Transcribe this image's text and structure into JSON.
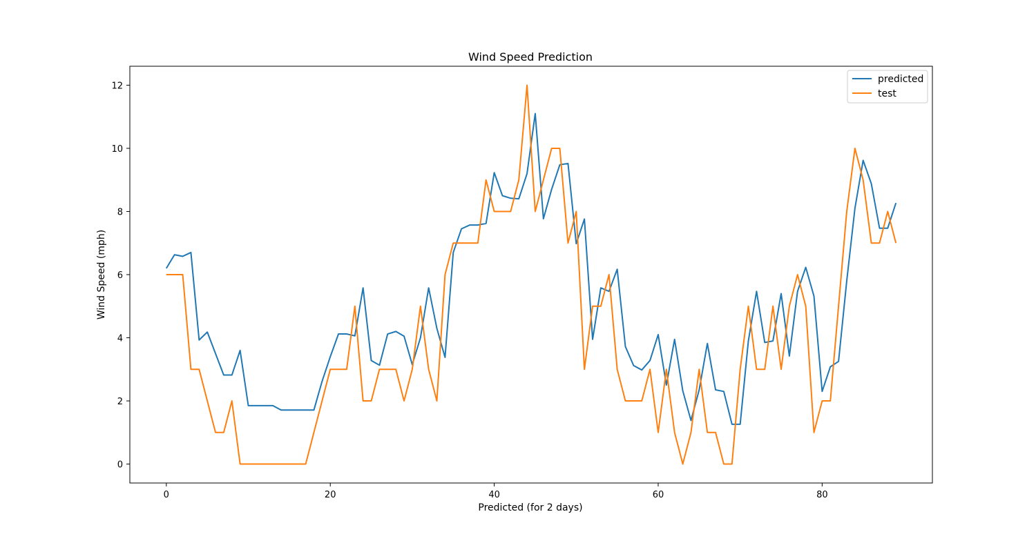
{
  "chart_data": {
    "type": "line",
    "title": "Wind Speed Prediction",
    "xlabel": "Predicted (for 2 days)",
    "ylabel": "Wind Speed (mph)",
    "xlim": [
      -4.45,
      93.45
    ],
    "ylim": [
      -0.6,
      12.6
    ],
    "xticks": [
      0,
      20,
      40,
      60,
      80
    ],
    "yticks": [
      0,
      2,
      4,
      6,
      8,
      10,
      12
    ],
    "grid": false,
    "legend_position": "top-right",
    "x": [
      0,
      1,
      2,
      3,
      4,
      5,
      6,
      7,
      8,
      9,
      10,
      11,
      12,
      13,
      14,
      15,
      16,
      17,
      18,
      19,
      20,
      21,
      22,
      23,
      24,
      25,
      26,
      27,
      28,
      29,
      30,
      31,
      32,
      33,
      34,
      35,
      36,
      37,
      38,
      39,
      40,
      41,
      42,
      43,
      44,
      45,
      46,
      47,
      48,
      49,
      50,
      51,
      52,
      53,
      54,
      55,
      56,
      57,
      58,
      59,
      60,
      61,
      62,
      63,
      64,
      65,
      66,
      67,
      68,
      69,
      70,
      71,
      72,
      73,
      74,
      75,
      76,
      77,
      78,
      79,
      80,
      81,
      82,
      83,
      84,
      85,
      86,
      87,
      88,
      89
    ],
    "series": [
      {
        "name": "predicted",
        "color": "#1f77b4",
        "values": [
          6.2,
          6.63,
          6.58,
          6.7,
          3.93,
          4.18,
          3.5,
          2.82,
          2.82,
          3.6,
          1.85,
          1.85,
          1.85,
          1.85,
          1.71,
          1.71,
          1.71,
          1.71,
          1.71,
          2.62,
          3.4,
          4.12,
          4.12,
          4.06,
          5.58,
          3.28,
          3.13,
          4.12,
          4.2,
          4.05,
          3.15,
          4.0,
          5.58,
          4.3,
          3.38,
          6.7,
          7.45,
          7.57,
          7.57,
          7.62,
          9.23,
          8.5,
          8.42,
          8.4,
          9.2,
          11.1,
          7.77,
          8.7,
          9.48,
          9.52,
          6.98,
          7.76,
          3.95,
          5.58,
          5.47,
          6.17,
          3.72,
          3.12,
          2.98,
          3.28,
          4.1,
          2.5,
          3.95,
          2.32,
          1.38,
          2.35,
          3.82,
          2.35,
          2.3,
          1.26,
          1.26,
          3.9,
          5.47,
          3.85,
          3.9,
          5.4,
          3.42,
          5.47,
          6.23,
          5.32,
          2.3,
          3.08,
          3.25,
          5.8,
          8.1,
          9.62,
          8.88,
          7.47,
          7.47,
          8.27
        ]
      },
      {
        "name": "test",
        "color": "#ff7f0e",
        "values": [
          6,
          6,
          6,
          3,
          3,
          2,
          1,
          1,
          2,
          0,
          0,
          0,
          0,
          0,
          0,
          0,
          0,
          0,
          1,
          2,
          3,
          3,
          3,
          5,
          2,
          2,
          3,
          3,
          3,
          2,
          3,
          5,
          3,
          2,
          6,
          7,
          7,
          7,
          7,
          9,
          8,
          8,
          8,
          9,
          12,
          8,
          9,
          10,
          10,
          7,
          8,
          3,
          5,
          5,
          6,
          3,
          2,
          2,
          2,
          3,
          1,
          3,
          1,
          0,
          1,
          3,
          1,
          1,
          0,
          0,
          3,
          5,
          3,
          3,
          5,
          3,
          5,
          6,
          5,
          1,
          2,
          2,
          5,
          8,
          10,
          9,
          7,
          7,
          8,
          7
        ]
      }
    ]
  }
}
